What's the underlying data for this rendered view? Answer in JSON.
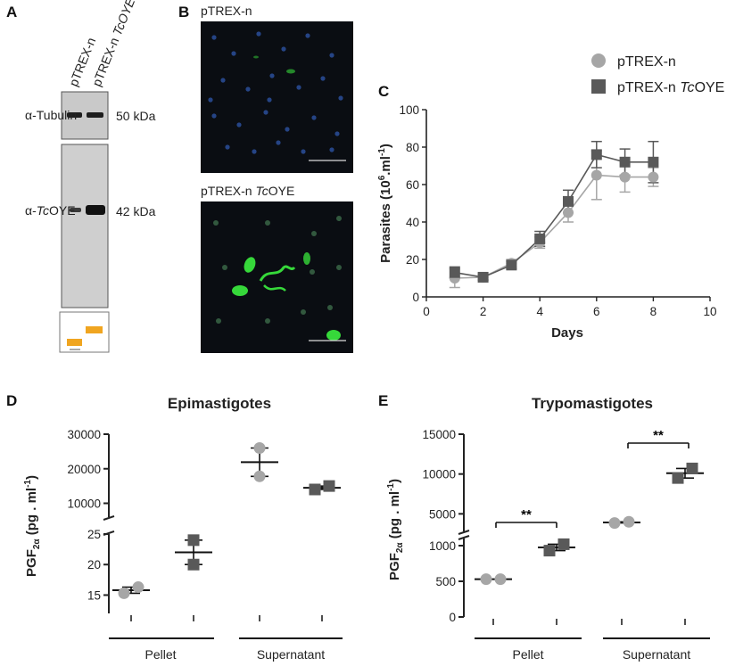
{
  "panel_letters": [
    "A",
    "B",
    "C",
    "D",
    "E"
  ],
  "panel_a": {
    "lanes": [
      "pTREX-n",
      "pTREX-n TcOYE"
    ],
    "lane2_prefix": "pTREX-n ",
    "lane2_italic": "TcOYE",
    "row1_label": "α-Tubulin",
    "row1_size": "50 kDa",
    "row2_label_prefix": "α-",
    "row2_label_italic": "Tc",
    "row2_label_suffix": "OYE",
    "row2_size": "42 kDa"
  },
  "panel_b": {
    "top_label": "pTREX-n",
    "bottom_label_prefix": "pTREX-n ",
    "bottom_label_italic": "Tc",
    "bottom_label_suffix": "OYE",
    "colors": {
      "background": "#0a0d12",
      "nuclei": "#2a4f9a",
      "gfp": "#36d83a"
    }
  },
  "legend": {
    "item1": "pTREX-n",
    "item2_prefix": "pTREX-n ",
    "item2_italic": "Tc",
    "item2_suffix": "OYE"
  },
  "colors": {
    "control": "#a6a6a6",
    "tcoye": "#595959"
  },
  "chart_data": [
    {
      "panel": "C",
      "type": "line",
      "xlabel": "Days",
      "ylabel_main": "Parasites",
      "ylabel_unit_prefix": "(10",
      "ylabel_unit_sup": "6",
      "ylabel_unit_mid": ".ml",
      "ylabel_unit_sup2": "-1",
      "ylabel_unit_suffix": ")",
      "xlim": [
        0,
        10
      ],
      "ylim": [
        0,
        100
      ],
      "xticks": [
        "0",
        "2",
        "4",
        "6",
        "8",
        "10"
      ],
      "yticks": [
        "0",
        "20",
        "40",
        "60",
        "80",
        "100"
      ],
      "series": [
        {
          "name": "pTREX-n",
          "marker": "circle",
          "x": [
            1,
            2,
            3,
            4,
            5,
            6,
            7,
            8
          ],
          "y": [
            10,
            10.5,
            18,
            29,
            45,
            65,
            64,
            64
          ],
          "err": [
            5,
            1.5,
            2,
            3,
            5,
            13,
            8,
            5
          ]
        },
        {
          "name": "pTREX-n TcOYE",
          "marker": "square",
          "x": [
            1,
            2,
            3,
            4,
            5,
            6,
            7,
            8
          ],
          "y": [
            13,
            10.5,
            17,
            31,
            51,
            76,
            72,
            72
          ],
          "err": [
            3,
            1.5,
            2,
            4,
            6,
            7,
            7,
            11
          ]
        }
      ]
    },
    {
      "panel": "D",
      "type": "scatter",
      "title": "Epimastigotes",
      "categories": [
        "Pellet",
        "Supernatant"
      ],
      "ylabel": "PGF2α (pg . ml-1)",
      "yticks_upper": [
        "10000",
        "20000",
        "30000"
      ],
      "yticks_lower": [
        "15",
        "20",
        "25"
      ],
      "ylim_upper": [
        6000,
        30000
      ],
      "ylim_lower": [
        12,
        25
      ],
      "groups": [
        {
          "category": "Pellet",
          "series": "pTREX-n",
          "points": [
            15.3,
            16.3
          ],
          "mean": 15.8,
          "sem": 0.5
        },
        {
          "category": "Pellet",
          "series": "pTREX-n TcOYE",
          "points": [
            20,
            24
          ],
          "mean": 22,
          "sem": 2
        },
        {
          "category": "Supernatant",
          "series": "pTREX-n",
          "points": [
            26000,
            17800
          ],
          "mean": 21900,
          "sem": 4100
        },
        {
          "category": "Supernatant",
          "series": "pTREX-n TcOYE",
          "points": [
            14000,
            15000
          ],
          "mean": 14500,
          "sem": 500
        }
      ]
    },
    {
      "panel": "E",
      "type": "scatter",
      "title": "Trypomastigotes",
      "categories": [
        "Pellet",
        "Supernatant"
      ],
      "ylabel": "PGF2α (pg . ml-1)",
      "yticks_upper": [
        "5000",
        "10000",
        "15000"
      ],
      "yticks_lower": [
        "0",
        "500",
        "1000"
      ],
      "ylim_upper": [
        2800,
        15000
      ],
      "ylim_lower": [
        0,
        1100
      ],
      "significance": [
        "**",
        "**"
      ],
      "groups": [
        {
          "category": "Pellet",
          "series": "pTREX-n",
          "points": [
            530,
            530
          ],
          "mean": 530,
          "sem": 0
        },
        {
          "category": "Pellet",
          "series": "pTREX-n TcOYE",
          "points": [
            930,
            1020
          ],
          "mean": 975,
          "sem": 45
        },
        {
          "category": "Supernatant",
          "series": "pTREX-n",
          "points": [
            3850,
            4000
          ],
          "mean": 3925,
          "sem": 75
        },
        {
          "category": "Supernatant",
          "series": "pTREX-n TcOYE",
          "points": [
            9500,
            10700
          ],
          "mean": 10100,
          "sem": 600
        }
      ]
    }
  ]
}
